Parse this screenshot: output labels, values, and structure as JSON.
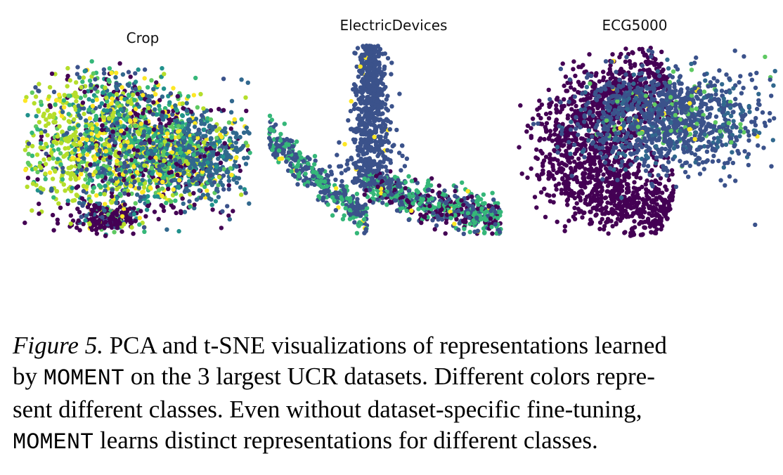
{
  "panels": [
    {
      "title": "Crop"
    },
    {
      "title": "ElectricDevices"
    },
    {
      "title": "ECG5000"
    }
  ],
  "caption": {
    "label": "Figure 5.",
    "line1_rest": " PCA and t-SNE visualizations of representations learned",
    "line2_pre": "by ",
    "model_name": "MOMENT",
    "line2_post": " on the 3 largest UCR datasets. Different colors repre-",
    "line3": "sent different classes. Even without dataset-specific fine-tuning,",
    "line4_model": "MOMENT",
    "line4_post": " learns distinct representations for different classes."
  },
  "colors": {
    "viridis": [
      "#440154",
      "#3b528b",
      "#21918c",
      "#5ec962",
      "#fde725",
      "#31688e",
      "#35b779",
      "#b5de2b"
    ]
  }
}
